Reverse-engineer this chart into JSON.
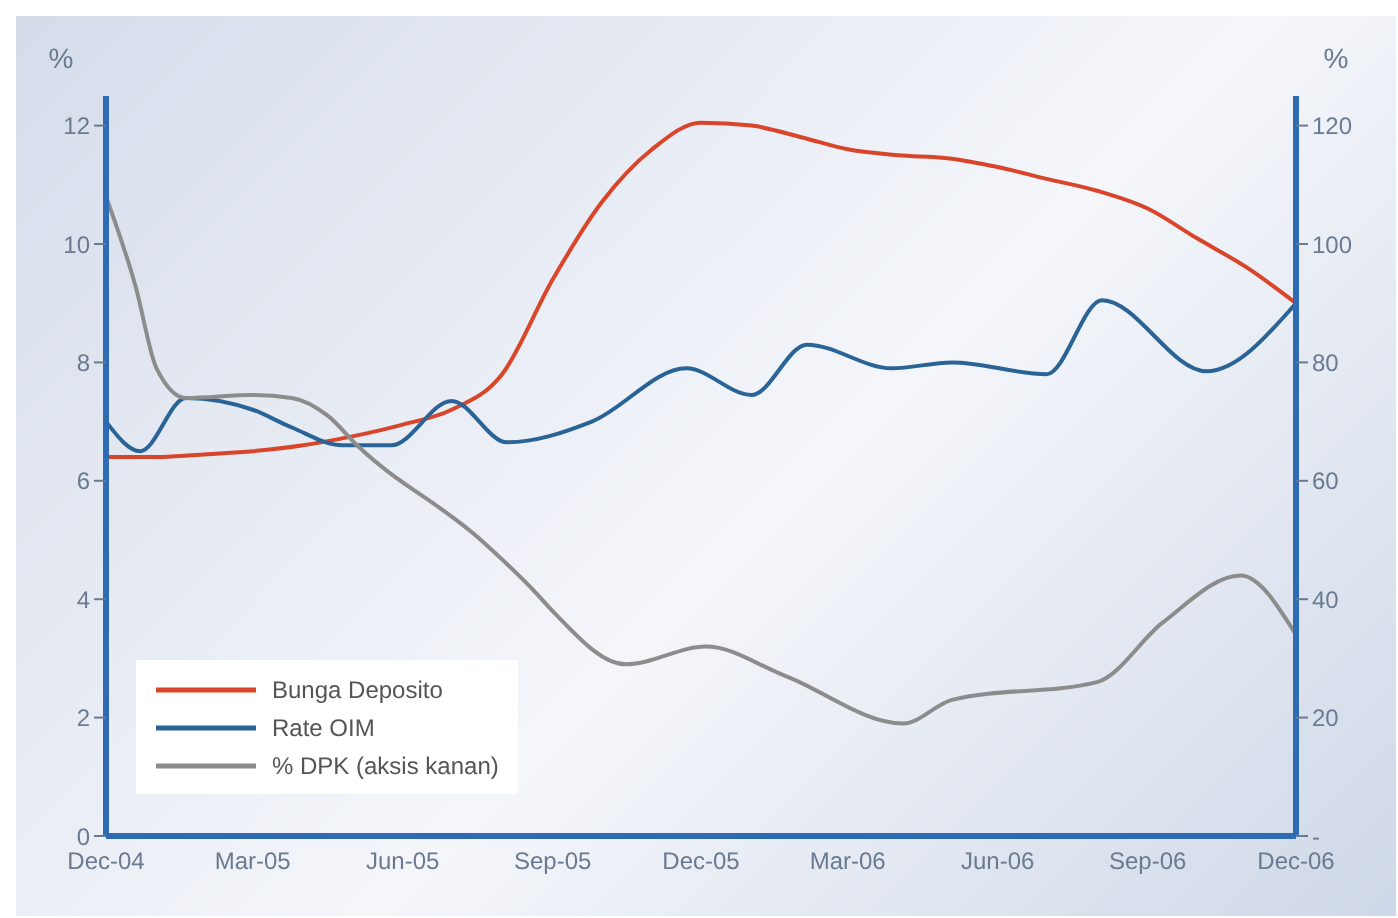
{
  "chart_data": {
    "type": "line",
    "ylabel": "%",
    "y2label": "%",
    "xlim": [
      "2004-12",
      "2006-12"
    ],
    "xticks": [
      {
        "value": "2004-12",
        "label": "Dec-04"
      },
      {
        "value": "2005-03",
        "label": "Mar-05"
      },
      {
        "value": "2005-06",
        "label": "Jun-05"
      },
      {
        "value": "2005-09",
        "label": "Sep-05"
      },
      {
        "value": "2005-12",
        "label": "Dec-05"
      },
      {
        "value": "2006-03",
        "label": "Mar-06"
      },
      {
        "value": "2006-06",
        "label": "Jun-06"
      },
      {
        "value": "2006-09",
        "label": "Sep-06"
      },
      {
        "value": "2006-12",
        "label": "Dec-06"
      }
    ],
    "ylim": [
      0,
      12.5
    ],
    "yticks": [
      0,
      2,
      4,
      6,
      8,
      10,
      12
    ],
    "y2lim": [
      0,
      125
    ],
    "y2ticks": [
      {
        "value": 0,
        "label": "-"
      },
      20,
      40,
      60,
      80,
      100,
      120
    ],
    "legend": "bottom left",
    "marker": "none",
    "line_style": "solid",
    "series": [
      {
        "name": "Bunga Deposito",
        "color": "#d9452b",
        "x": [
          "2004-12",
          "2005-01",
          "2005-02",
          "2005-03",
          "2005-04",
          "2005-05",
          "2005-06",
          "2005-07",
          "2005-08",
          "2005-09",
          "2005-10",
          "2005-11",
          "2005-12",
          "2006-01",
          "2006-02",
          "2006-03",
          "2006-04",
          "2006-05",
          "2006-06",
          "2006-07",
          "2006-08",
          "2006-09",
          "2006-10",
          "2006-11",
          "2006-12"
        ],
        "values": [
          6.4,
          6.4,
          6.45,
          6.5,
          6.6,
          6.75,
          6.95,
          7.2,
          7.8,
          9.4,
          10.7,
          11.6,
          12.05,
          12.0,
          11.8,
          11.6,
          11.5,
          11.45,
          11.3,
          11.1,
          10.9,
          10.6,
          10.1,
          9.6,
          9.0
        ]
      },
      {
        "name": "Rate OIM",
        "color": "#2a6496",
        "x": [
          "2004-12",
          "2004-12-22",
          "2005-01-19",
          "2005-03",
          "2005-03-25",
          "2005-04-25",
          "2005-05-25",
          "2005-07",
          "2005-08-04",
          "2005-09-25",
          "2005-11-22",
          "2006-01",
          "2006-02-04",
          "2006-03-28",
          "2006-05-04",
          "2006-07",
          "2006-08-04",
          "2006-10-07",
          "2006-12"
        ],
        "values": [
          7.0,
          6.5,
          7.4,
          7.2,
          6.9,
          6.6,
          6.6,
          7.35,
          6.65,
          7.0,
          7.9,
          7.45,
          8.3,
          7.9,
          8.0,
          7.8,
          9.05,
          7.85,
          9.0
        ]
      },
      {
        "name": "% DPK (aksis kanan)",
        "color": "#8c8c8c",
        "axis": "y2",
        "x": [
          "2004-12",
          "2004-12-19",
          "2005-01",
          "2005-01-19",
          "2005-03",
          "2005-03-25",
          "2005-04-16",
          "2005-05-04",
          "2005-07-19",
          "2005-08-22",
          "2005-09",
          "2005-10-16",
          "2005-12-04",
          "2006-01-22",
          "2006-04-04",
          "2006-05-04",
          "2006-08",
          "2006-09-10",
          "2006-10-28",
          "2006-12"
        ],
        "values": [
          108,
          93,
          79,
          74,
          74.5,
          74,
          71,
          66,
          50,
          41,
          38,
          29,
          32,
          27,
          19,
          23,
          26,
          36,
          44,
          34
        ]
      }
    ]
  }
}
